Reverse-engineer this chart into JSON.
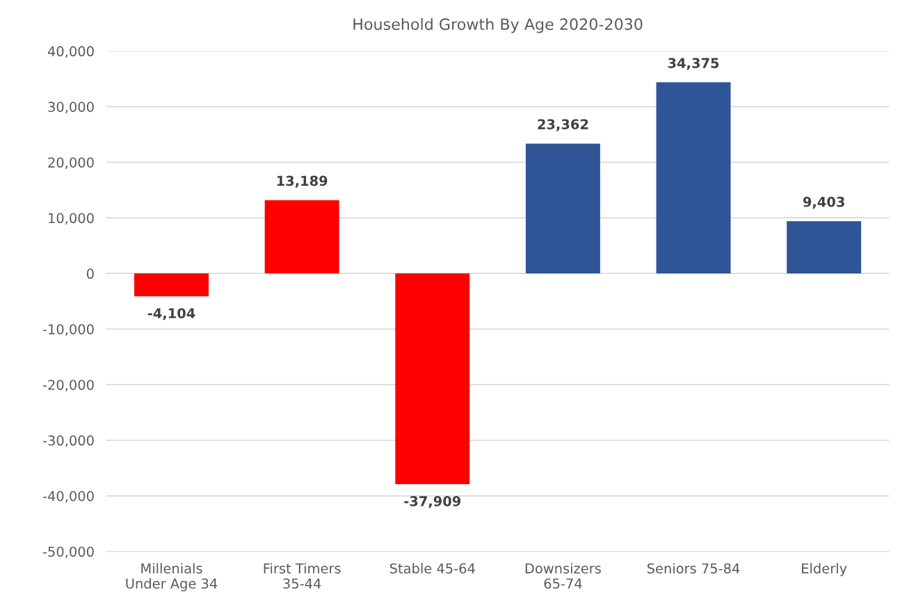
{
  "chart_data": {
    "type": "bar",
    "title": "Household Growth By Age 2020-2030",
    "categories": [
      "Millenials\nUnder Age 34",
      "First Timers\n35-44",
      "Stable 45-64",
      "Downsizers\n65-74",
      "Seniors 75-84",
      "Elderly"
    ],
    "values": [
      -4104,
      13189,
      -37909,
      23362,
      34375,
      9403
    ],
    "colors": [
      "#ff0000",
      "#ff0000",
      "#ff0000",
      "#2f5597",
      "#2f5597",
      "#2f5597"
    ],
    "value_labels": [
      "-4,104",
      "13,189",
      "-37,909",
      "23,362",
      "34,375",
      "9,403"
    ],
    "ylim": [
      -50000,
      40000
    ],
    "yticks": [
      {
        "value": -50000,
        "label": "-50,000"
      },
      {
        "value": -40000,
        "label": "-40,000"
      },
      {
        "value": -30000,
        "label": "-30,000"
      },
      {
        "value": -20000,
        "label": "-20,000"
      },
      {
        "value": -10000,
        "label": "-10,000"
      },
      0,
      {
        "value": 10000,
        "label": "10,000"
      },
      {
        "value": 20000,
        "label": "20,000"
      },
      {
        "value": 30000,
        "label": "30,000"
      },
      {
        "value": 40000,
        "label": "40,000"
      }
    ],
    "grid": "y"
  }
}
